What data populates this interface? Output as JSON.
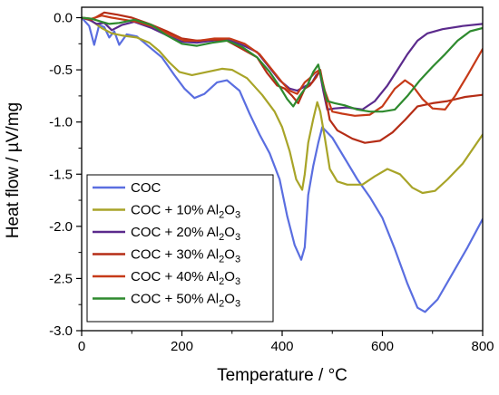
{
  "chart_data": {
    "type": "line",
    "xlabel": "Temperature / °C",
    "ylabel": "Heat flow / µV/mg",
    "xlim": [
      0,
      800
    ],
    "ylim": [
      -3.0,
      0.1
    ],
    "x_ticks": [
      0,
      200,
      400,
      600,
      800
    ],
    "y_ticks": [
      0.0,
      -0.5,
      -1.0,
      -1.5,
      -2.0,
      -2.5,
      -3.0
    ],
    "x_tick_labels": [
      "0",
      "200",
      "400",
      "600",
      "800"
    ],
    "y_tick_labels": [
      "0.0",
      "-0.5",
      "-1.0",
      "-1.5",
      "-2.0",
      "-2.5",
      "-3.0"
    ],
    "grid": false,
    "legend_position": "bottom-left",
    "series": [
      {
        "name": "COC",
        "color": "#5a6ee0",
        "points": [
          [
            0,
            0.0
          ],
          [
            15,
            -0.08
          ],
          [
            25,
            -0.26
          ],
          [
            35,
            -0.07
          ],
          [
            45,
            -0.09
          ],
          [
            55,
            -0.19
          ],
          [
            65,
            -0.13
          ],
          [
            75,
            -0.26
          ],
          [
            90,
            -0.16
          ],
          [
            110,
            -0.18
          ],
          [
            135,
            -0.28
          ],
          [
            160,
            -0.38
          ],
          [
            185,
            -0.55
          ],
          [
            205,
            -0.68
          ],
          [
            225,
            -0.77
          ],
          [
            245,
            -0.73
          ],
          [
            270,
            -0.62
          ],
          [
            290,
            -0.6
          ],
          [
            315,
            -0.7
          ],
          [
            335,
            -0.92
          ],
          [
            355,
            -1.12
          ],
          [
            375,
            -1.3
          ],
          [
            395,
            -1.55
          ],
          [
            410,
            -1.9
          ],
          [
            425,
            -2.18
          ],
          [
            438,
            -2.32
          ],
          [
            445,
            -2.2
          ],
          [
            452,
            -1.7
          ],
          [
            462,
            -1.42
          ],
          [
            472,
            -1.2
          ],
          [
            480,
            -1.05
          ],
          [
            500,
            -1.15
          ],
          [
            525,
            -1.35
          ],
          [
            550,
            -1.55
          ],
          [
            575,
            -1.72
          ],
          [
            600,
            -1.92
          ],
          [
            625,
            -2.22
          ],
          [
            650,
            -2.55
          ],
          [
            670,
            -2.78
          ],
          [
            685,
            -2.82
          ],
          [
            710,
            -2.7
          ],
          [
            740,
            -2.45
          ],
          [
            770,
            -2.2
          ],
          [
            800,
            -1.93
          ]
        ]
      },
      {
        "name": "COC + 10% Al2O3",
        "color": "#a8a428",
        "points": [
          [
            0,
            0.0
          ],
          [
            20,
            -0.03
          ],
          [
            40,
            -0.1
          ],
          [
            60,
            -0.15
          ],
          [
            80,
            -0.17
          ],
          [
            110,
            -0.19
          ],
          [
            135,
            -0.24
          ],
          [
            155,
            -0.32
          ],
          [
            175,
            -0.43
          ],
          [
            195,
            -0.52
          ],
          [
            220,
            -0.55
          ],
          [
            250,
            -0.52
          ],
          [
            280,
            -0.49
          ],
          [
            300,
            -0.5
          ],
          [
            330,
            -0.58
          ],
          [
            360,
            -0.74
          ],
          [
            385,
            -0.9
          ],
          [
            400,
            -1.05
          ],
          [
            415,
            -1.28
          ],
          [
            428,
            -1.55
          ],
          [
            440,
            -1.65
          ],
          [
            445,
            -1.5
          ],
          [
            452,
            -1.2
          ],
          [
            462,
            -0.97
          ],
          [
            470,
            -0.81
          ],
          [
            476,
            -0.9
          ],
          [
            485,
            -1.15
          ],
          [
            495,
            -1.45
          ],
          [
            510,
            -1.57
          ],
          [
            530,
            -1.6
          ],
          [
            560,
            -1.6
          ],
          [
            585,
            -1.52
          ],
          [
            610,
            -1.45
          ],
          [
            635,
            -1.5
          ],
          [
            660,
            -1.63
          ],
          [
            680,
            -1.68
          ],
          [
            705,
            -1.66
          ],
          [
            730,
            -1.55
          ],
          [
            760,
            -1.4
          ],
          [
            800,
            -1.12
          ]
        ]
      },
      {
        "name": "COC + 20% Al2O3",
        "color": "#5b2a8c",
        "points": [
          [
            0,
            0.0
          ],
          [
            15,
            -0.02
          ],
          [
            30,
            -0.06
          ],
          [
            45,
            -0.05
          ],
          [
            60,
            -0.12
          ],
          [
            80,
            -0.07
          ],
          [
            105,
            -0.04
          ],
          [
            140,
            -0.1
          ],
          [
            175,
            -0.18
          ],
          [
            200,
            -0.23
          ],
          [
            230,
            -0.24
          ],
          [
            260,
            -0.22
          ],
          [
            290,
            -0.21
          ],
          [
            320,
            -0.26
          ],
          [
            350,
            -0.33
          ],
          [
            375,
            -0.48
          ],
          [
            395,
            -0.6
          ],
          [
            415,
            -0.68
          ],
          [
            430,
            -0.7
          ],
          [
            445,
            -0.66
          ],
          [
            460,
            -0.62
          ],
          [
            468,
            -0.55
          ],
          [
            475,
            -0.52
          ],
          [
            482,
            -0.7
          ],
          [
            490,
            -0.88
          ],
          [
            505,
            -0.87
          ],
          [
            530,
            -0.86
          ],
          [
            560,
            -0.88
          ],
          [
            585,
            -0.8
          ],
          [
            610,
            -0.65
          ],
          [
            630,
            -0.5
          ],
          [
            650,
            -0.35
          ],
          [
            670,
            -0.22
          ],
          [
            690,
            -0.15
          ],
          [
            720,
            -0.11
          ],
          [
            760,
            -0.08
          ],
          [
            800,
            -0.06
          ]
        ]
      },
      {
        "name": "COC + 30% Al2O3",
        "color": "#b52d16",
        "points": [
          [
            0,
            0.0
          ],
          [
            20,
            -0.02
          ],
          [
            45,
            0.05
          ],
          [
            70,
            0.03
          ],
          [
            100,
            0.0
          ],
          [
            135,
            -0.06
          ],
          [
            170,
            -0.13
          ],
          [
            200,
            -0.2
          ],
          [
            230,
            -0.22
          ],
          [
            260,
            -0.21
          ],
          [
            290,
            -0.22
          ],
          [
            320,
            -0.3
          ],
          [
            350,
            -0.38
          ],
          [
            370,
            -0.53
          ],
          [
            390,
            -0.65
          ],
          [
            405,
            -0.68
          ],
          [
            420,
            -0.75
          ],
          [
            432,
            -0.82
          ],
          [
            445,
            -0.68
          ],
          [
            455,
            -0.65
          ],
          [
            468,
            -0.57
          ],
          [
            476,
            -0.5
          ],
          [
            484,
            -0.7
          ],
          [
            495,
            -0.98
          ],
          [
            510,
            -1.08
          ],
          [
            540,
            -1.16
          ],
          [
            565,
            -1.2
          ],
          [
            595,
            -1.18
          ],
          [
            620,
            -1.1
          ],
          [
            645,
            -0.98
          ],
          [
            670,
            -0.85
          ],
          [
            700,
            -0.82
          ],
          [
            730,
            -0.8
          ],
          [
            765,
            -0.76
          ],
          [
            800,
            -0.74
          ]
        ]
      },
      {
        "name": "COC + 40% Al2O3",
        "color": "#c63a18",
        "points": [
          [
            0,
            0.0
          ],
          [
            20,
            -0.01
          ],
          [
            40,
            0.02
          ],
          [
            60,
            0.0
          ],
          [
            85,
            -0.02
          ],
          [
            110,
            -0.04
          ],
          [
            145,
            -0.09
          ],
          [
            175,
            -0.16
          ],
          [
            205,
            -0.22
          ],
          [
            235,
            -0.22
          ],
          [
            265,
            -0.2
          ],
          [
            295,
            -0.2
          ],
          [
            325,
            -0.25
          ],
          [
            355,
            -0.35
          ],
          [
            380,
            -0.5
          ],
          [
            400,
            -0.62
          ],
          [
            415,
            -0.7
          ],
          [
            430,
            -0.73
          ],
          [
            445,
            -0.62
          ],
          [
            455,
            -0.58
          ],
          [
            465,
            -0.53
          ],
          [
            475,
            -0.5
          ],
          [
            485,
            -0.7
          ],
          [
            500,
            -0.9
          ],
          [
            520,
            -0.92
          ],
          [
            545,
            -0.94
          ],
          [
            575,
            -0.93
          ],
          [
            600,
            -0.85
          ],
          [
            625,
            -0.68
          ],
          [
            645,
            -0.6
          ],
          [
            660,
            -0.65
          ],
          [
            680,
            -0.78
          ],
          [
            700,
            -0.87
          ],
          [
            725,
            -0.88
          ],
          [
            745,
            -0.75
          ],
          [
            770,
            -0.55
          ],
          [
            800,
            -0.3
          ]
        ]
      },
      {
        "name": "COC + 50% Al2O3",
        "color": "#2e8a2e",
        "points": [
          [
            0,
            0.0
          ],
          [
            20,
            -0.01
          ],
          [
            40,
            -0.04
          ],
          [
            55,
            -0.06
          ],
          [
            75,
            -0.05
          ],
          [
            105,
            -0.02
          ],
          [
            140,
            -0.07
          ],
          [
            170,
            -0.17
          ],
          [
            200,
            -0.25
          ],
          [
            230,
            -0.27
          ],
          [
            260,
            -0.24
          ],
          [
            290,
            -0.22
          ],
          [
            320,
            -0.28
          ],
          [
            350,
            -0.38
          ],
          [
            375,
            -0.52
          ],
          [
            395,
            -0.66
          ],
          [
            410,
            -0.78
          ],
          [
            422,
            -0.85
          ],
          [
            435,
            -0.75
          ],
          [
            450,
            -0.65
          ],
          [
            462,
            -0.52
          ],
          [
            472,
            -0.45
          ],
          [
            480,
            -0.62
          ],
          [
            490,
            -0.8
          ],
          [
            505,
            -0.82
          ],
          [
            525,
            -0.84
          ],
          [
            550,
            -0.88
          ],
          [
            575,
            -0.9
          ],
          [
            600,
            -0.9
          ],
          [
            625,
            -0.88
          ],
          [
            650,
            -0.75
          ],
          [
            675,
            -0.6
          ],
          [
            700,
            -0.47
          ],
          [
            725,
            -0.35
          ],
          [
            750,
            -0.22
          ],
          [
            775,
            -0.13
          ],
          [
            800,
            -0.1
          ]
        ]
      }
    ]
  }
}
